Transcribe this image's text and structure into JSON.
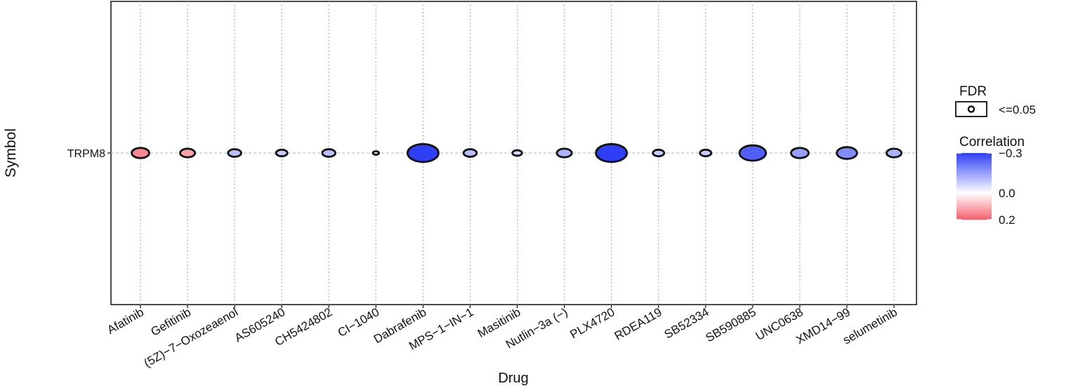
{
  "chart_data": {
    "type": "scatter",
    "xlabel": "Drug",
    "ylabel": "Symbol",
    "categories": [
      "Afatinib",
      "Gefitinib",
      "(5Z)−7−Oxozeaenol",
      "AS605240",
      "CH5424802",
      "CI−1040",
      "Dabrafenib",
      "MPS−1−IN−1",
      "Masitinib",
      "Nutlin−3a (−)",
      "PLX4720",
      "RDEA119",
      "SB52334",
      "SB590885",
      "UNC0638",
      "XMD14−99",
      "selumetinib"
    ],
    "y_categories": [
      "TRPM8"
    ],
    "series": [
      {
        "symbol": "TRPM8",
        "correlation": [
          0.15,
          0.12,
          -0.1,
          -0.08,
          -0.1,
          -0.02,
          -0.3,
          -0.1,
          -0.06,
          -0.12,
          -0.3,
          -0.08,
          -0.08,
          -0.25,
          -0.15,
          -0.18,
          -0.12
        ],
        "fdr": [
          "<=0.05",
          "<=0.05",
          "<=0.05",
          "<=0.05",
          "<=0.05",
          "<=0.05",
          "<=0.05",
          "<=0.05",
          "<=0.05",
          "<=0.05",
          "<=0.05",
          "<=0.05",
          "<=0.05",
          "<=0.05",
          "<=0.05",
          "<=0.05",
          "<=0.05"
        ]
      }
    ],
    "legend": {
      "position": "right",
      "fdr_title": "FDR",
      "fdr_label": "<=0.05",
      "color_title": "Correlation",
      "color_ticks": [
        "−0.3",
        "0.0",
        "0.2"
      ],
      "color_tick_values": [
        -0.3,
        0.0,
        0.2
      ]
    },
    "colors": {
      "negative": "#2f3ff5",
      "zero": "#ffffff",
      "positive": "#f4606e"
    },
    "grid": "dotted-vertical"
  }
}
